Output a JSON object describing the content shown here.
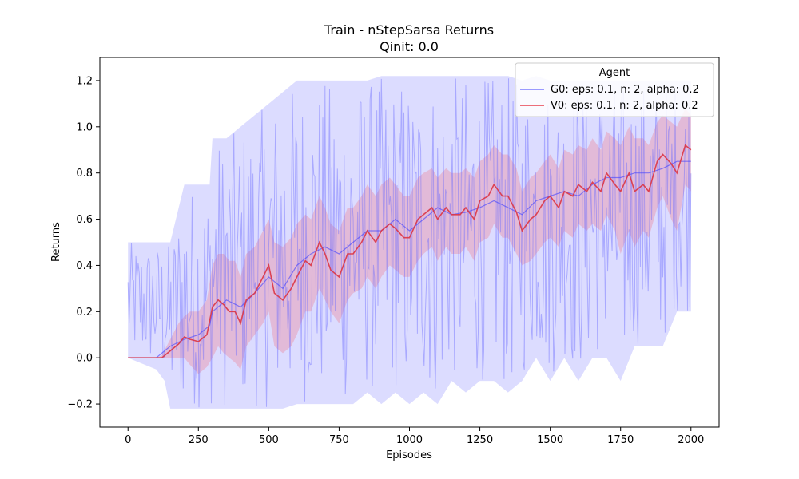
{
  "chart_data": {
    "type": "line",
    "title": "Train - nStepSarsa Returns",
    "subtitle": "Qinit: 0.0",
    "xlabel": "Episodes",
    "ylabel": "Returns",
    "xlim": [
      -100,
      2100
    ],
    "ylim": [
      -0.3,
      1.3
    ],
    "xticks": [
      0,
      250,
      500,
      750,
      1000,
      1250,
      1500,
      1750,
      2000
    ],
    "yticks": [
      -0.2,
      0.0,
      0.2,
      0.4,
      0.6,
      0.8,
      1.0,
      1.2
    ],
    "xtick_labels": [
      "0",
      "250",
      "500",
      "750",
      "1000",
      "1250",
      "1500",
      "1750",
      "2000"
    ],
    "ytick_labels": [
      "−0.2",
      "0.0",
      "0.2",
      "0.4",
      "0.6",
      "0.8",
      "1.0",
      "1.2"
    ],
    "grid": false,
    "legend": {
      "title": "Agent",
      "placement": "top-right",
      "entries": [
        {
          "label": "G0: eps: 0.1, n: 2, alpha: 0.2",
          "color": "#7b7bff"
        },
        {
          "label": "V0: eps: 0.1, n: 2, alpha: 0.2",
          "color": "#e8404f"
        }
      ]
    },
    "series": [
      {
        "name": "G0: eps: 0.1, n: 2, alpha: 0.2",
        "color": "#4040ff",
        "band_color": "#9a9aff",
        "x": [
          0,
          100,
          130,
          150,
          200,
          250,
          290,
          300,
          350,
          400,
          450,
          500,
          550,
          600,
          650,
          700,
          750,
          800,
          850,
          900,
          950,
          1000,
          1050,
          1100,
          1150,
          1200,
          1250,
          1300,
          1350,
          1400,
          1450,
          1500,
          1550,
          1600,
          1650,
          1700,
          1750,
          1800,
          1850,
          1900,
          1950,
          2000
        ],
        "y": [
          0.0,
          0.0,
          0.03,
          0.05,
          0.08,
          0.1,
          0.14,
          0.2,
          0.25,
          0.22,
          0.28,
          0.35,
          0.3,
          0.4,
          0.45,
          0.48,
          0.45,
          0.5,
          0.55,
          0.55,
          0.6,
          0.55,
          0.6,
          0.65,
          0.62,
          0.63,
          0.65,
          0.68,
          0.65,
          0.62,
          0.68,
          0.7,
          0.72,
          0.7,
          0.75,
          0.78,
          0.78,
          0.8,
          0.8,
          0.82,
          0.85,
          0.85
        ],
        "lower": [
          0.0,
          -0.05,
          -0.1,
          -0.22,
          -0.22,
          -0.22,
          -0.22,
          -0.22,
          -0.22,
          -0.22,
          -0.22,
          -0.22,
          -0.22,
          -0.2,
          -0.2,
          -0.2,
          -0.2,
          -0.2,
          -0.15,
          -0.2,
          -0.15,
          -0.2,
          -0.15,
          -0.2,
          -0.1,
          -0.15,
          -0.1,
          -0.1,
          -0.15,
          -0.1,
          0.0,
          -0.1,
          0.0,
          -0.1,
          0.0,
          0.0,
          -0.1,
          0.05,
          0.05,
          0.05,
          0.2,
          0.2
        ],
        "upper": [
          0.5,
          0.5,
          0.5,
          0.5,
          0.75,
          0.75,
          0.75,
          0.95,
          0.95,
          1.0,
          1.05,
          1.1,
          1.15,
          1.2,
          1.2,
          1.2,
          1.2,
          1.2,
          1.2,
          1.22,
          1.22,
          1.22,
          1.22,
          1.22,
          1.22,
          1.22,
          1.22,
          1.22,
          1.22,
          1.2,
          1.22,
          1.2,
          1.2,
          1.2,
          1.2,
          1.2,
          1.2,
          1.2,
          1.2,
          1.2,
          1.2,
          1.2
        ]
      },
      {
        "name": "V0: eps: 0.1, n: 2, alpha: 0.2",
        "color": "#dc3545",
        "band_color": "#e890a8",
        "x": [
          0,
          100,
          120,
          150,
          180,
          200,
          220,
          250,
          280,
          300,
          320,
          340,
          360,
          380,
          400,
          420,
          450,
          480,
          500,
          520,
          550,
          580,
          600,
          630,
          650,
          680,
          700,
          720,
          750,
          780,
          800,
          830,
          850,
          880,
          900,
          930,
          950,
          980,
          1000,
          1030,
          1050,
          1080,
          1100,
          1130,
          1150,
          1180,
          1200,
          1230,
          1250,
          1280,
          1300,
          1330,
          1350,
          1380,
          1400,
          1430,
          1450,
          1480,
          1500,
          1530,
          1550,
          1580,
          1600,
          1630,
          1650,
          1680,
          1700,
          1730,
          1750,
          1780,
          1800,
          1830,
          1850,
          1880,
          1900,
          1930,
          1950,
          1980,
          2000
        ],
        "y": [
          0.0,
          0.0,
          0.0,
          0.03,
          0.06,
          0.09,
          0.08,
          0.07,
          0.1,
          0.22,
          0.25,
          0.23,
          0.2,
          0.2,
          0.15,
          0.25,
          0.28,
          0.35,
          0.4,
          0.28,
          0.25,
          0.3,
          0.35,
          0.42,
          0.4,
          0.5,
          0.45,
          0.38,
          0.35,
          0.45,
          0.45,
          0.5,
          0.55,
          0.5,
          0.55,
          0.58,
          0.56,
          0.52,
          0.52,
          0.6,
          0.62,
          0.65,
          0.6,
          0.65,
          0.62,
          0.62,
          0.65,
          0.6,
          0.68,
          0.7,
          0.75,
          0.7,
          0.7,
          0.63,
          0.55,
          0.6,
          0.62,
          0.68,
          0.7,
          0.65,
          0.72,
          0.7,
          0.75,
          0.72,
          0.76,
          0.72,
          0.8,
          0.75,
          0.72,
          0.8,
          0.72,
          0.75,
          0.72,
          0.85,
          0.88,
          0.84,
          0.8,
          0.92,
          0.9
        ],
        "lower": [
          0.0,
          0.0,
          0.0,
          0.0,
          0.0,
          0.0,
          -0.03,
          -0.07,
          -0.04,
          0.0,
          0.05,
          0.02,
          0.0,
          -0.02,
          -0.05,
          0.05,
          0.1,
          0.15,
          0.2,
          0.05,
          0.02,
          0.05,
          0.1,
          0.2,
          0.2,
          0.3,
          0.25,
          0.2,
          0.15,
          0.25,
          0.28,
          0.3,
          0.35,
          0.3,
          0.35,
          0.4,
          0.38,
          0.35,
          0.35,
          0.42,
          0.45,
          0.48,
          0.42,
          0.48,
          0.45,
          0.45,
          0.48,
          0.42,
          0.5,
          0.52,
          0.58,
          0.52,
          0.52,
          0.45,
          0.4,
          0.42,
          0.45,
          0.5,
          0.52,
          0.48,
          0.55,
          0.52,
          0.58,
          0.55,
          0.58,
          0.55,
          0.62,
          0.55,
          0.45,
          0.55,
          0.48,
          0.55,
          0.52,
          0.65,
          0.7,
          0.6,
          0.55,
          0.75,
          0.72
        ],
        "upper": [
          0.0,
          0.0,
          0.01,
          0.08,
          0.15,
          0.18,
          0.2,
          0.2,
          0.25,
          0.4,
          0.45,
          0.45,
          0.42,
          0.42,
          0.35,
          0.45,
          0.48,
          0.55,
          0.6,
          0.5,
          0.48,
          0.52,
          0.58,
          0.62,
          0.6,
          0.7,
          0.65,
          0.58,
          0.55,
          0.65,
          0.65,
          0.7,
          0.75,
          0.7,
          0.75,
          0.78,
          0.75,
          0.7,
          0.7,
          0.78,
          0.8,
          0.82,
          0.78,
          0.82,
          0.8,
          0.8,
          0.82,
          0.78,
          0.85,
          0.88,
          0.92,
          0.88,
          0.88,
          0.82,
          0.72,
          0.78,
          0.8,
          0.85,
          0.88,
          0.82,
          0.9,
          0.88,
          0.92,
          0.9,
          0.95,
          0.9,
          0.98,
          0.95,
          0.92,
          1.0,
          0.95,
          0.95,
          0.92,
          1.02,
          1.05,
          1.02,
          1.0,
          1.08,
          1.05
        ]
      }
    ]
  }
}
